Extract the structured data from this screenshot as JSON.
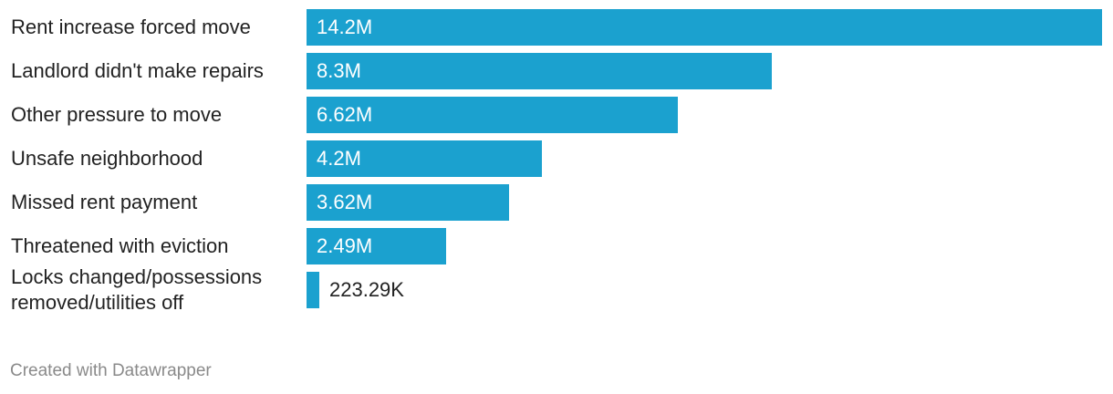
{
  "chart_data": {
    "type": "bar",
    "orientation": "horizontal",
    "categories": [
      "Rent increase forced move",
      "Landlord didn't make repairs",
      "Other pressure to move",
      "Unsafe neighborhood",
      "Missed rent payment",
      "Threatened with eviction",
      "Locks changed/possessions removed/utilities off"
    ],
    "values": [
      14200000,
      8300000,
      6620000,
      4200000,
      3620000,
      2490000,
      223290
    ],
    "value_labels": [
      "14.2M",
      "8.3M",
      "6.62M",
      "4.2M",
      "3.62M",
      "2.49M",
      "223.29K"
    ],
    "xlim": [
      0,
      14200000
    ],
    "grid": false,
    "legend": "none",
    "color": "#1ba1cf"
  },
  "footer": {
    "credit": "Created with Datawrapper"
  }
}
